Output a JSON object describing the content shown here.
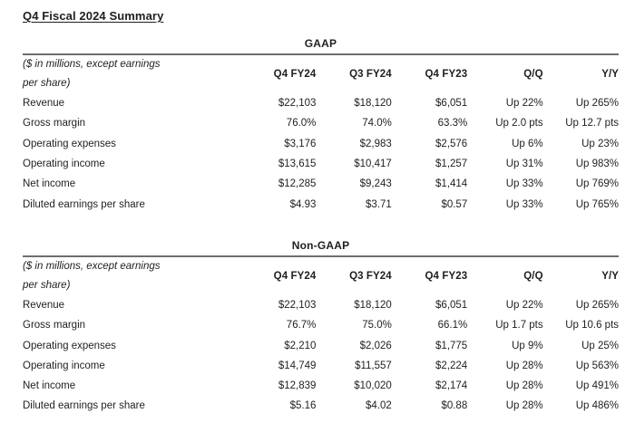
{
  "page": {
    "title": "Q4 Fiscal 2024 Summary"
  },
  "colors": {
    "text": "#1f1f1f",
    "rule": "#6e6e6e",
    "background": "#ffffff"
  },
  "tables": [
    {
      "title": "GAAP",
      "note_line1": "($ in millions, except earnings",
      "note_line2": "per share)",
      "columns": [
        "Q4 FY24",
        "Q3 FY24",
        "Q4 FY23",
        "Q/Q",
        "Y/Y"
      ],
      "rows": [
        {
          "label": "Revenue",
          "values": [
            "$22,103",
            "$18,120",
            "$6,051",
            "Up 22%",
            "Up 265%"
          ]
        },
        {
          "label": "Gross margin",
          "values": [
            "76.0%",
            "74.0%",
            "63.3%",
            "Up 2.0 pts",
            "Up 12.7 pts"
          ]
        },
        {
          "label": "Operating expenses",
          "values": [
            "$3,176",
            "$2,983",
            "$2,576",
            "Up 6%",
            "Up 23%"
          ]
        },
        {
          "label": "Operating income",
          "values": [
            "$13,615",
            "$10,417",
            "$1,257",
            "Up 31%",
            "Up 983%"
          ]
        },
        {
          "label": "Net income",
          "values": [
            "$12,285",
            "$9,243",
            "$1,414",
            "Up 33%",
            "Up 769%"
          ]
        },
        {
          "label": "Diluted earnings per share",
          "values": [
            "$4.93",
            "$3.71",
            "$0.57",
            "Up 33%",
            "Up 765%"
          ]
        }
      ]
    },
    {
      "title": "Non-GAAP",
      "note_line1": "($ in millions, except earnings",
      "note_line2": "per share)",
      "columns": [
        "Q4 FY24",
        "Q3 FY24",
        "Q4 FY23",
        "Q/Q",
        "Y/Y"
      ],
      "rows": [
        {
          "label": "Revenue",
          "values": [
            "$22,103",
            "$18,120",
            "$6,051",
            "Up 22%",
            "Up 265%"
          ]
        },
        {
          "label": "Gross margin",
          "values": [
            "76.7%",
            "75.0%",
            "66.1%",
            "Up 1.7 pts",
            "Up 10.6 pts"
          ]
        },
        {
          "label": "Operating expenses",
          "values": [
            "$2,210",
            "$2,026",
            "$1,775",
            "Up 9%",
            "Up 25%"
          ]
        },
        {
          "label": "Operating income",
          "values": [
            "$14,749",
            "$11,557",
            "$2,224",
            "Up 28%",
            "Up 563%"
          ]
        },
        {
          "label": "Net income",
          "values": [
            "$12,839",
            "$10,020",
            "$2,174",
            "Up 28%",
            "Up 491%"
          ]
        },
        {
          "label": "Diluted earnings per share",
          "values": [
            "$5.16",
            "$4.02",
            "$0.88",
            "Up 28%",
            "Up 486%"
          ]
        }
      ]
    }
  ]
}
